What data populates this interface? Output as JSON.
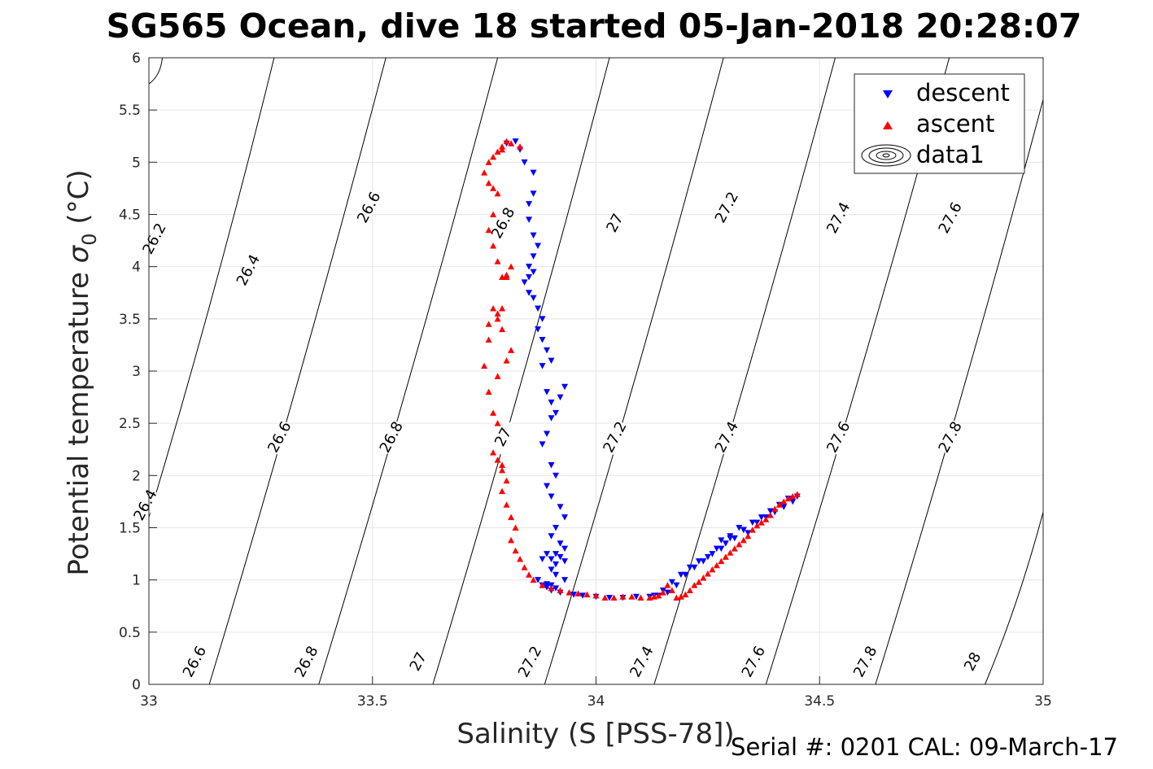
{
  "title": "SG565 Ocean, dive 18 started 05-Jan-2018 20:28:07",
  "footer": "Serial #: 0201  CAL: 09-March-17",
  "chart_data": {
    "type": "scatter",
    "title": "SG565 Ocean, dive 18 started 05-Jan-2018 20:28:07",
    "xlabel": "Salinity (S [PSS-78])",
    "ylabel_main": "Potential temperature ",
    "ylabel_sigma": "σ",
    "ylabel_sub": "0",
    "ylabel_end": " (°C)",
    "xlim": [
      33,
      35
    ],
    "ylim": [
      0,
      6
    ],
    "xticks": [
      33,
      33.5,
      34,
      34.5,
      35
    ],
    "xtick_labels": [
      "33",
      "33.5",
      "34",
      "34.5",
      "35"
    ],
    "yticks": [
      0,
      0.5,
      1,
      1.5,
      2,
      2.5,
      3,
      3.5,
      4,
      4.5,
      5,
      5.5,
      6
    ],
    "ytick_labels": [
      "0",
      "0.5",
      "1",
      "1.5",
      "2",
      "2.5",
      "3",
      "3.5",
      "4",
      "4.5",
      "5",
      "5.5",
      "6"
    ],
    "grid": true,
    "legend_position": "top-right",
    "legend": [
      {
        "label": "descent",
        "marker": "triangle-down",
        "color": "#0000ff"
      },
      {
        "label": "ascent",
        "marker": "triangle-up",
        "color": "#ff0000"
      },
      {
        "label": "data1",
        "marker": "contour",
        "color": "#000000"
      }
    ],
    "density_contours": [
      {
        "level": "26.2",
        "lines": [
          [
            33.0,
            5.75,
            33.03,
            6.0
          ]
        ]
      },
      {
        "level": "26.4",
        "lines": [
          [
            33.0,
            1.6,
            33.28,
            6.0
          ],
          [
            33.0,
            1.6,
            33.0,
            1.6
          ]
        ]
      },
      {
        "level": "26.6",
        "lines": [
          [
            33.135,
            0.0,
            33.53,
            6.0
          ]
        ]
      },
      {
        "level": "26.8",
        "lines": [
          [
            33.38,
            0.0,
            33.78,
            6.0
          ]
        ]
      },
      {
        "level": "27",
        "lines": [
          [
            33.635,
            0.0,
            34.03,
            6.0
          ]
        ]
      },
      {
        "level": "27.2",
        "lines": [
          [
            33.885,
            0.0,
            34.285,
            6.0
          ]
        ]
      },
      {
        "level": "27.4",
        "lines": [
          [
            34.13,
            0.0,
            34.535,
            6.0
          ]
        ]
      },
      {
        "level": "27.6",
        "lines": [
          [
            34.38,
            0.0,
            34.79,
            6.0
          ]
        ]
      },
      {
        "level": "27.8",
        "lines": [
          [
            34.625,
            0.0,
            35.0,
            5.6
          ]
        ]
      },
      {
        "level": "28",
        "lines": [
          [
            34.87,
            0.0,
            35.0,
            1.65
          ]
        ]
      }
    ],
    "contour_labels": [
      {
        "text": "26.2",
        "x": 33.08,
        "y": 4.65
      },
      {
        "text": "26.4",
        "x": 33.29,
        "y": 4.35
      },
      {
        "text": "26.6",
        "x": 33.56,
        "y": 4.95
      },
      {
        "text": "26.8",
        "x": 33.86,
        "y": 4.8
      },
      {
        "text": "27",
        "x": 34.11,
        "y": 4.8
      },
      {
        "text": "27.2",
        "x": 34.36,
        "y": 4.95
      },
      {
        "text": "27.4",
        "x": 34.61,
        "y": 4.85
      },
      {
        "text": "27.6",
        "x": 34.86,
        "y": 4.85
      },
      {
        "text": "26.4",
        "x": 33.06,
        "y": 2.1
      },
      {
        "text": "26.6",
        "x": 33.36,
        "y": 2.75
      },
      {
        "text": "26.8",
        "x": 33.61,
        "y": 2.75
      },
      {
        "text": "27",
        "x": 33.86,
        "y": 2.75
      },
      {
        "text": "27.2",
        "x": 34.11,
        "y": 2.75
      },
      {
        "text": "27.4",
        "x": 34.36,
        "y": 2.75
      },
      {
        "text": "27.6",
        "x": 34.61,
        "y": 2.75
      },
      {
        "text": "27.8",
        "x": 34.86,
        "y": 2.75
      },
      {
        "text": "26.6",
        "x": 33.17,
        "y": 0.6
      },
      {
        "text": "26.8",
        "x": 33.42,
        "y": 0.6
      },
      {
        "text": "27",
        "x": 33.67,
        "y": 0.6
      },
      {
        "text": "27.2",
        "x": 33.92,
        "y": 0.6
      },
      {
        "text": "27.4",
        "x": 34.17,
        "y": 0.6
      },
      {
        "text": "27.6",
        "x": 34.42,
        "y": 0.6
      },
      {
        "text": "27.8",
        "x": 34.67,
        "y": 0.6
      },
      {
        "text": "28",
        "x": 34.91,
        "y": 0.6
      }
    ],
    "series": [
      {
        "name": "descent",
        "marker": "triangle-down",
        "color": "#0000ff",
        "x": [
          33.82,
          33.8,
          33.83,
          33.84,
          33.86,
          33.86,
          33.85,
          33.85,
          33.86,
          33.87,
          33.86,
          33.85,
          33.86,
          33.85,
          33.84,
          33.85,
          33.86,
          33.87,
          33.88,
          33.87,
          33.88,
          33.89,
          33.9,
          33.88,
          33.89,
          33.9,
          33.91,
          33.93,
          33.92,
          33.9,
          33.89,
          33.88,
          33.9,
          33.91,
          33.89,
          33.9,
          33.92,
          33.93,
          33.91,
          33.9,
          33.92,
          33.93,
          33.91,
          33.9,
          33.92,
          33.93,
          33.91,
          33.89,
          33.88,
          33.9,
          33.91,
          33.93,
          33.9,
          33.89,
          33.91,
          33.88,
          33.87,
          33.89,
          33.9,
          33.92,
          33.95,
          33.97,
          34.0,
          34.03,
          34.06,
          34.09,
          34.12,
          34.14,
          34.16,
          34.18,
          34.2,
          34.22,
          34.24,
          34.26,
          34.28,
          34.3,
          34.32,
          34.34,
          34.3,
          34.28,
          34.33,
          34.36,
          34.38,
          34.4,
          34.42,
          34.44,
          34.45,
          34.43,
          34.41,
          34.39,
          34.37,
          34.35,
          34.33,
          34.31,
          34.29,
          34.27,
          34.25,
          34.23,
          34.21,
          34.19,
          34.17,
          34.15,
          34.13
        ],
        "y": [
          5.2,
          5.18,
          5.12,
          5.0,
          4.9,
          4.7,
          4.6,
          4.45,
          4.3,
          4.2,
          4.1,
          4.0,
          3.95,
          3.9,
          3.85,
          3.75,
          3.7,
          3.6,
          3.5,
          3.4,
          3.3,
          3.2,
          3.1,
          3.05,
          2.8,
          2.7,
          2.6,
          2.85,
          2.75,
          2.55,
          2.4,
          2.3,
          2.1,
          2.0,
          1.9,
          1.8,
          1.7,
          1.6,
          1.5,
          1.42,
          1.35,
          1.3,
          1.25,
          1.2,
          1.22,
          1.18,
          1.15,
          1.25,
          1.2,
          1.1,
          1.05,
          1.0,
          0.95,
          0.93,
          0.92,
          0.95,
          1.0,
          0.96,
          0.9,
          0.88,
          0.86,
          0.85,
          0.84,
          0.83,
          0.83,
          0.84,
          0.84,
          0.85,
          0.88,
          0.95,
          1.05,
          1.12,
          1.18,
          1.25,
          1.3,
          1.4,
          1.5,
          1.45,
          1.42,
          1.38,
          1.48,
          1.55,
          1.6,
          1.65,
          1.7,
          1.75,
          1.8,
          1.78,
          1.72,
          1.66,
          1.6,
          1.55,
          1.48,
          1.4,
          1.35,
          1.3,
          1.22,
          1.18,
          1.12,
          1.05,
          0.98,
          0.9,
          0.85
        ]
      },
      {
        "name": "ascent",
        "marker": "triangle-up",
        "color": "#ff0000",
        "x": [
          34.45,
          34.44,
          34.43,
          34.42,
          34.41,
          34.4,
          34.39,
          34.38,
          34.37,
          34.36,
          34.35,
          34.34,
          34.33,
          34.32,
          34.31,
          34.3,
          34.29,
          34.28,
          34.27,
          34.26,
          34.25,
          34.24,
          34.23,
          34.22,
          34.21,
          34.2,
          34.19,
          34.18,
          34.17,
          34.16,
          34.15,
          34.14,
          34.13,
          34.12,
          34.1,
          34.08,
          34.06,
          34.04,
          34.02,
          34.0,
          33.98,
          33.96,
          33.94,
          33.92,
          33.9,
          33.88,
          33.86,
          33.85,
          33.84,
          33.83,
          33.82,
          33.81,
          33.82,
          33.81,
          33.8,
          33.79,
          33.8,
          33.79,
          33.78,
          33.77,
          33.79,
          33.78,
          33.77,
          33.76,
          33.78,
          33.8,
          33.81,
          33.79,
          33.78,
          33.77,
          33.76,
          33.75,
          33.76,
          33.78,
          33.79,
          33.8,
          33.81,
          33.8,
          33.79,
          33.78,
          33.77,
          33.76,
          33.77,
          33.78,
          33.77,
          33.76,
          33.75,
          33.76,
          33.77,
          33.78,
          33.79,
          33.8,
          33.81,
          33.83,
          33.79
        ],
        "y": [
          1.82,
          1.8,
          1.78,
          1.75,
          1.72,
          1.68,
          1.62,
          1.58,
          1.55,
          1.52,
          1.48,
          1.42,
          1.38,
          1.34,
          1.3,
          1.26,
          1.22,
          1.18,
          1.14,
          1.1,
          1.06,
          1.02,
          0.98,
          0.95,
          0.9,
          0.86,
          0.84,
          0.83,
          0.9,
          0.95,
          0.88,
          0.85,
          0.84,
          0.83,
          0.83,
          0.84,
          0.84,
          0.83,
          0.83,
          0.85,
          0.86,
          0.87,
          0.88,
          0.9,
          0.92,
          0.95,
          1.0,
          1.05,
          1.12,
          1.2,
          1.28,
          1.38,
          1.5,
          1.6,
          1.72,
          1.85,
          1.95,
          2.05,
          2.15,
          2.22,
          2.1,
          2.5,
          2.6,
          2.8,
          2.95,
          3.1,
          3.2,
          3.4,
          3.5,
          3.6,
          3.3,
          3.05,
          3.45,
          3.55,
          3.6,
          3.9,
          4.0,
          3.92,
          3.9,
          4.05,
          4.2,
          4.35,
          4.5,
          4.7,
          4.75,
          4.8,
          4.9,
          5.0,
          5.05,
          5.1,
          5.15,
          5.2,
          5.18,
          5.15,
          5.12
        ]
      }
    ]
  }
}
